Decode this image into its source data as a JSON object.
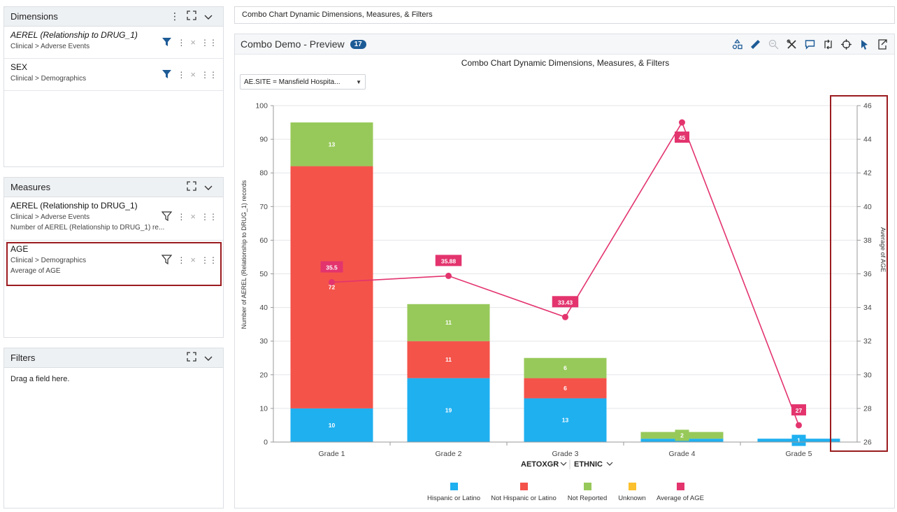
{
  "dimensions": {
    "title": "Dimensions",
    "items": [
      {
        "name": "AEREL (Relationship to DRUG_1)",
        "path": "Clinical > Adverse Events"
      },
      {
        "name": "SEX",
        "path": "Clinical > Demographics"
      }
    ]
  },
  "measures": {
    "title": "Measures",
    "items": [
      {
        "name": "AEREL (Relationship to DRUG_1)",
        "path": "Clinical > Adverse Events",
        "agg": "Number of AEREL (Relationship to DRUG_1) re..."
      },
      {
        "name": "AGE",
        "path": "Clinical > Demographics",
        "agg": "Average of AGE"
      }
    ]
  },
  "filters": {
    "title": "Filters",
    "placeholder": "Drag a field here."
  },
  "search": {
    "value": "Combo Chart Dynamic Dimensions, Measures, & Filters"
  },
  "preview": {
    "title": "Combo Demo - Preview",
    "badge": "17",
    "site_filter": "AE.SITE = Mansfield Hospita...",
    "x_dim_1": "AETOXGR",
    "x_dim_2": "ETHNIC"
  },
  "colors": {
    "hispanic": "#1fb0f0",
    "not_hispanic": "#f4534a",
    "not_reported": "#97c95a",
    "unknown": "#fbc02d",
    "avg_age": "#e3346e",
    "highlight": "#9b1c20",
    "accent": "#1d5b96"
  },
  "chart_data": {
    "type": "bar",
    "title": "Combo Chart Dynamic Dimensions, Measures, & Filters",
    "ylabel": "Number of AEREL  (Relationship to DRUG_1) records",
    "y2label": "Average of AGE",
    "ylim": [
      0,
      100
    ],
    "y2lim": [
      26,
      46
    ],
    "yticks": [
      "0",
      "10",
      "20",
      "30",
      "40",
      "50",
      "60",
      "70",
      "80",
      "90",
      "100"
    ],
    "y2ticks": [
      "26",
      "28",
      "30",
      "32",
      "34",
      "36",
      "38",
      "40",
      "42",
      "44",
      "46"
    ],
    "categories": [
      "Grade 1",
      "Grade 2",
      "Grade 3",
      "Grade 4",
      "Grade 5"
    ],
    "series": [
      {
        "name": "Hispanic or Latino",
        "values": [
          10,
          19,
          13,
          1,
          1
        ],
        "labels": [
          "10",
          "19",
          "13",
          "",
          "1"
        ]
      },
      {
        "name": "Not Hispanic or Latino",
        "values": [
          72,
          11,
          6,
          0,
          0
        ],
        "labels": [
          "72",
          "11",
          "6",
          "",
          ""
        ]
      },
      {
        "name": "Not Reported",
        "values": [
          13,
          11,
          6,
          2,
          0
        ],
        "labels": [
          "13",
          "11",
          "6",
          "2",
          ""
        ]
      },
      {
        "name": "Unknown",
        "values": [
          0,
          0,
          0,
          0,
          0
        ],
        "labels": [
          "",
          "",
          "",
          "",
          ""
        ]
      }
    ],
    "line": {
      "name": "Average of AGE",
      "values": [
        35.5,
        35.88,
        33.43,
        45,
        27
      ],
      "labels": [
        "35.5",
        "35.88",
        "33.43",
        "45",
        "27"
      ]
    },
    "legend": [
      "Hispanic or Latino",
      "Not Hispanic or Latino",
      "Not Reported",
      "Unknown",
      "Average of AGE"
    ],
    "legend_position": "bottom"
  }
}
